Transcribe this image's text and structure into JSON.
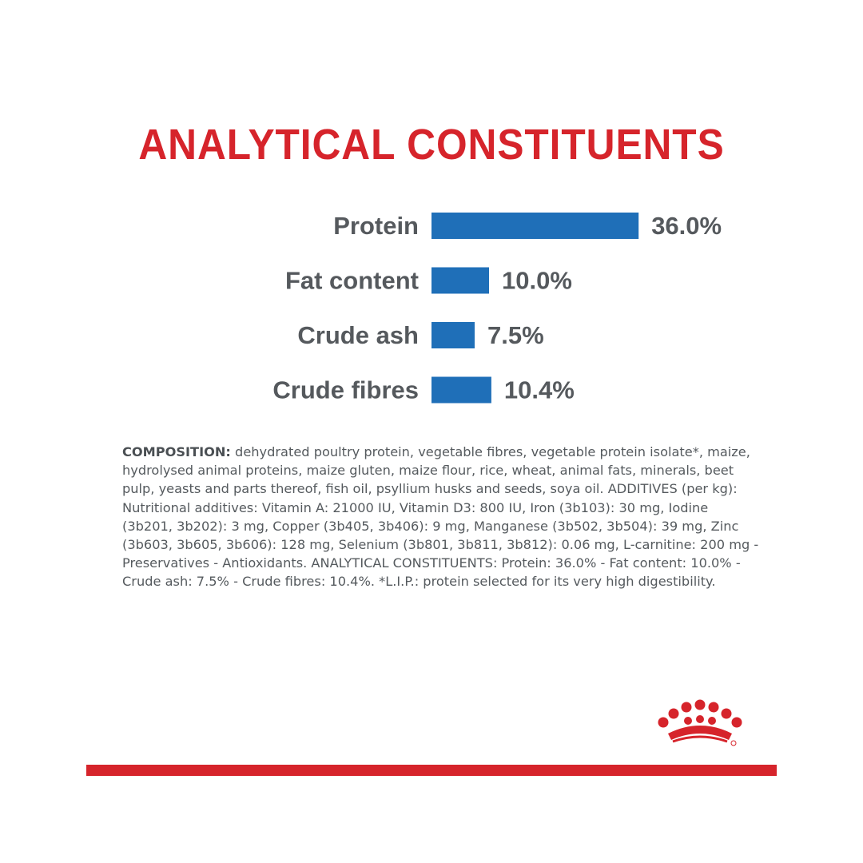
{
  "title": "ANALYTICAL CONSTITUENTS",
  "chart_data": {
    "type": "bar",
    "orientation": "horizontal",
    "categories": [
      "Protein",
      "Fat content",
      "Crude ash",
      "Crude fibres"
    ],
    "values": [
      36.0,
      10.0,
      7.5,
      10.4
    ],
    "value_labels": [
      "36.0%",
      "10.0%",
      "7.5%",
      "10.4%"
    ],
    "unit": "%",
    "bar_color": "#1f6fb8",
    "label_color": "#55595d",
    "grid": false
  },
  "composition": {
    "label": "COMPOSITION:",
    "text": " dehydrated poultry protein, vegetable fibres, vegetable protein isolate*, maize, hydrolysed animal proteins, maize gluten, maize flour, rice, wheat, animal fats, minerals, beet pulp, yeasts and parts thereof, fish oil, psyllium husks and seeds, soya oil. ADDITIVES (per kg): Nutritional additives: Vitamin A: 21000 IU, Vitamin D3: 800 IU, Iron (3b103): 30 mg, Iodine (3b201, 3b202): 3 mg, Copper (3b405, 3b406): 9 mg, Manganese (3b502, 3b504): 39 mg, Zinc (3b603, 3b605, 3b606): 128 mg, Selenium (3b801, 3b811, 3b812): 0.06 mg, L-carnitine: 200 mg - Preservatives - Antioxidants. ANALYTICAL CONSTITUENTS: Protein: 36.0% - Fat content: 10.0% - Crude ash: 7.5% - Crude fibres: 10.4%. *L.I.P.: protein selected for its very high digestibility."
  },
  "brand": {
    "logo_icon": "crown-icon",
    "accent_color": "#d6242b"
  }
}
